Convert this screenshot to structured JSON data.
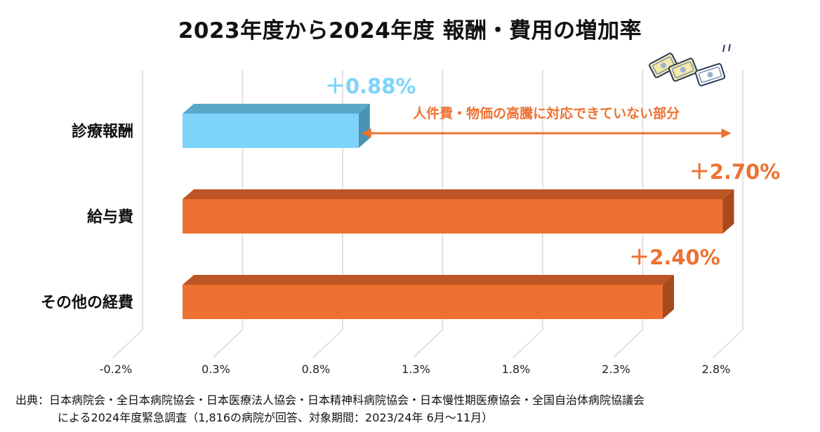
{
  "chart_data": {
    "type": "bar",
    "orientation": "horizontal",
    "style": "3d",
    "title": "2023年度から2024年度 報酬・費用の増加率",
    "categories": [
      "診療報酬",
      "給与費",
      "その他の経費"
    ],
    "values": [
      0.88,
      2.7,
      2.4
    ],
    "value_labels": [
      "＋0.88%",
      "＋2.70%",
      "＋2.40%"
    ],
    "x_ticks": [
      -0.2,
      0.3,
      0.8,
      1.3,
      1.8,
      2.3,
      2.8
    ],
    "x_tick_labels": [
      "-0.2%",
      "0.3%",
      "0.8%",
      "1.3%",
      "1.8%",
      "2.3%",
      "2.8%"
    ],
    "xlim": [
      -0.2,
      2.8
    ],
    "grid": true,
    "legend": "none",
    "colors": {
      "bars": [
        "#7ED3FB",
        "#ED7131",
        "#ED7131"
      ],
      "bar_tops": [
        "#5AA8C9",
        "#BD5524",
        "#BD5524"
      ],
      "bar_sides": [
        "#4A93B5",
        "#A84A1E",
        "#A84A1E"
      ],
      "labels": [
        "#7ED3FB",
        "#ED7131",
        "#ED7131"
      ],
      "grid": "#D9D9D9",
      "annotation": "#ED7131"
    },
    "annotation": {
      "text": "人件費・物価の高騰に対応できていない部分",
      "from": 0.88,
      "to": 2.7,
      "category": "診療報酬"
    },
    "decoration": "money-icon"
  },
  "source": {
    "line1": "出典：日本病院会・全日本病院協会・日本医療法人協会・日本精神科病院協会・日本慢性期医療協会・全国自治体病院協議会",
    "line2": "による2024年度緊急調査（1,816の病院が回答、対象期間：2023/24年 6月～11月）"
  }
}
